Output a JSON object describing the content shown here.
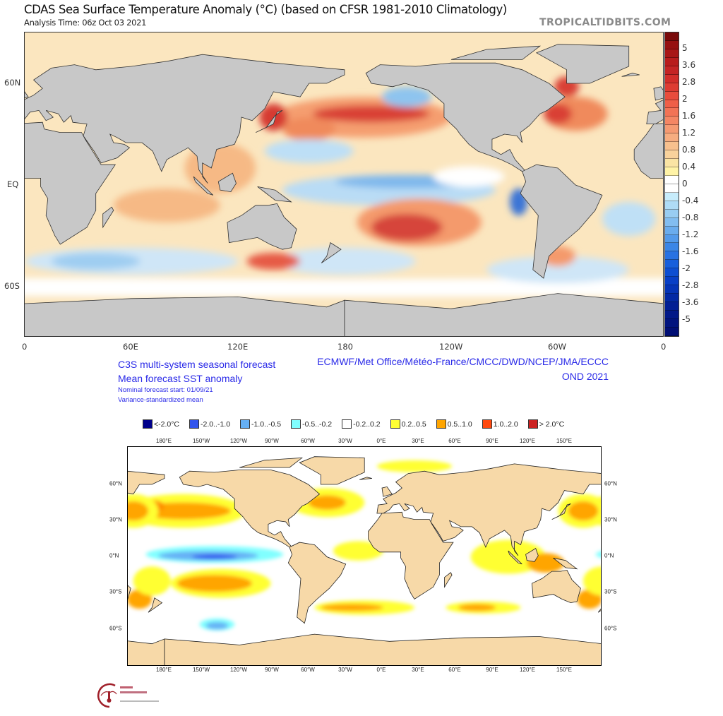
{
  "top_panel": {
    "title": "CDAS Sea Surface Temperature Anomaly (°C) (based on CFSR 1981-2010 Climatology)",
    "analysis_time": "Analysis Time: 06z Oct 03 2021",
    "brand": "TROPICALTIDBITS.COM",
    "lat_labels": [
      "60N",
      "EQ",
      "60S"
    ],
    "lon_labels": [
      "0",
      "60E",
      "120E",
      "180",
      "120W",
      "60W",
      "0"
    ],
    "colorbar": {
      "labels": [
        "5",
        "3.6",
        "2.8",
        "2",
        "1.6",
        "1.2",
        "0.8",
        "0.4",
        "0",
        "-0.4",
        "-0.8",
        "-1.2",
        "-1.6",
        "-2",
        "-2.8",
        "-3.6",
        "-5"
      ],
      "colors": [
        "#7a0a0a",
        "#961010",
        "#a81616",
        "#b81c1c",
        "#c42424",
        "#d22e2a",
        "#de3c32",
        "#e84c3c",
        "#ef5f48",
        "#f27356",
        "#f48664",
        "#f59a72",
        "#f6ad80",
        "#f7c08e",
        "#f8d29c",
        "#fae4a4",
        "#fff3a6",
        "#ffffff",
        "#ffffff",
        "#c7ecfb",
        "#afdcf6",
        "#99cdf2",
        "#82bdf0",
        "#6aaced",
        "#539aea",
        "#3b86e6",
        "#2872e2",
        "#175fdc",
        "#0d4ed2",
        "#083fc6",
        "#0534b6",
        "#0329a4",
        "#021f94",
        "#011888",
        "#00137e",
        "#000e74"
      ]
    }
  },
  "bottom_panel": {
    "title_lines": [
      "C3S multi-system seasonal forecast",
      "Mean forecast SST anomaly"
    ],
    "sub_lines": [
      "Nominal forecast start: 01/09/21",
      "Variance-standardized mean"
    ],
    "centres": "ECMWF/Met Office/Météo-France/CMCC/DWD/NCEP/JMA/ECCC",
    "period": "OND 2021",
    "legend": [
      {
        "label": "<-2.0°C",
        "color": "#00008b"
      },
      {
        "label": "-2.0..-1.0",
        "color": "#3355ee"
      },
      {
        "label": "-1.0..-0.5",
        "color": "#66b0f5"
      },
      {
        "label": "-0.5..-0.2",
        "color": "#80ffff"
      },
      {
        "label": "-0.2..0.2",
        "color": "#ffffff"
      },
      {
        "label": "0.2..0.5",
        "color": "#ffff33"
      },
      {
        "label": "0.5..1.0",
        "color": "#ffa500"
      },
      {
        "label": "1.0..2.0",
        "color": "#ff4a10"
      },
      {
        "label": "> 2.0°C",
        "color": "#cc2222"
      }
    ],
    "lon_labels": [
      "180°E",
      "150°W",
      "120°W",
      "90°W",
      "60°W",
      "30°W",
      "0°E",
      "30°E",
      "60°E",
      "90°E",
      "120°E",
      "150°E"
    ],
    "lat_labels": [
      "60°N",
      "30°N",
      "0°N",
      "30°S",
      "60°S"
    ],
    "logo_text": "Climate Change Service"
  }
}
